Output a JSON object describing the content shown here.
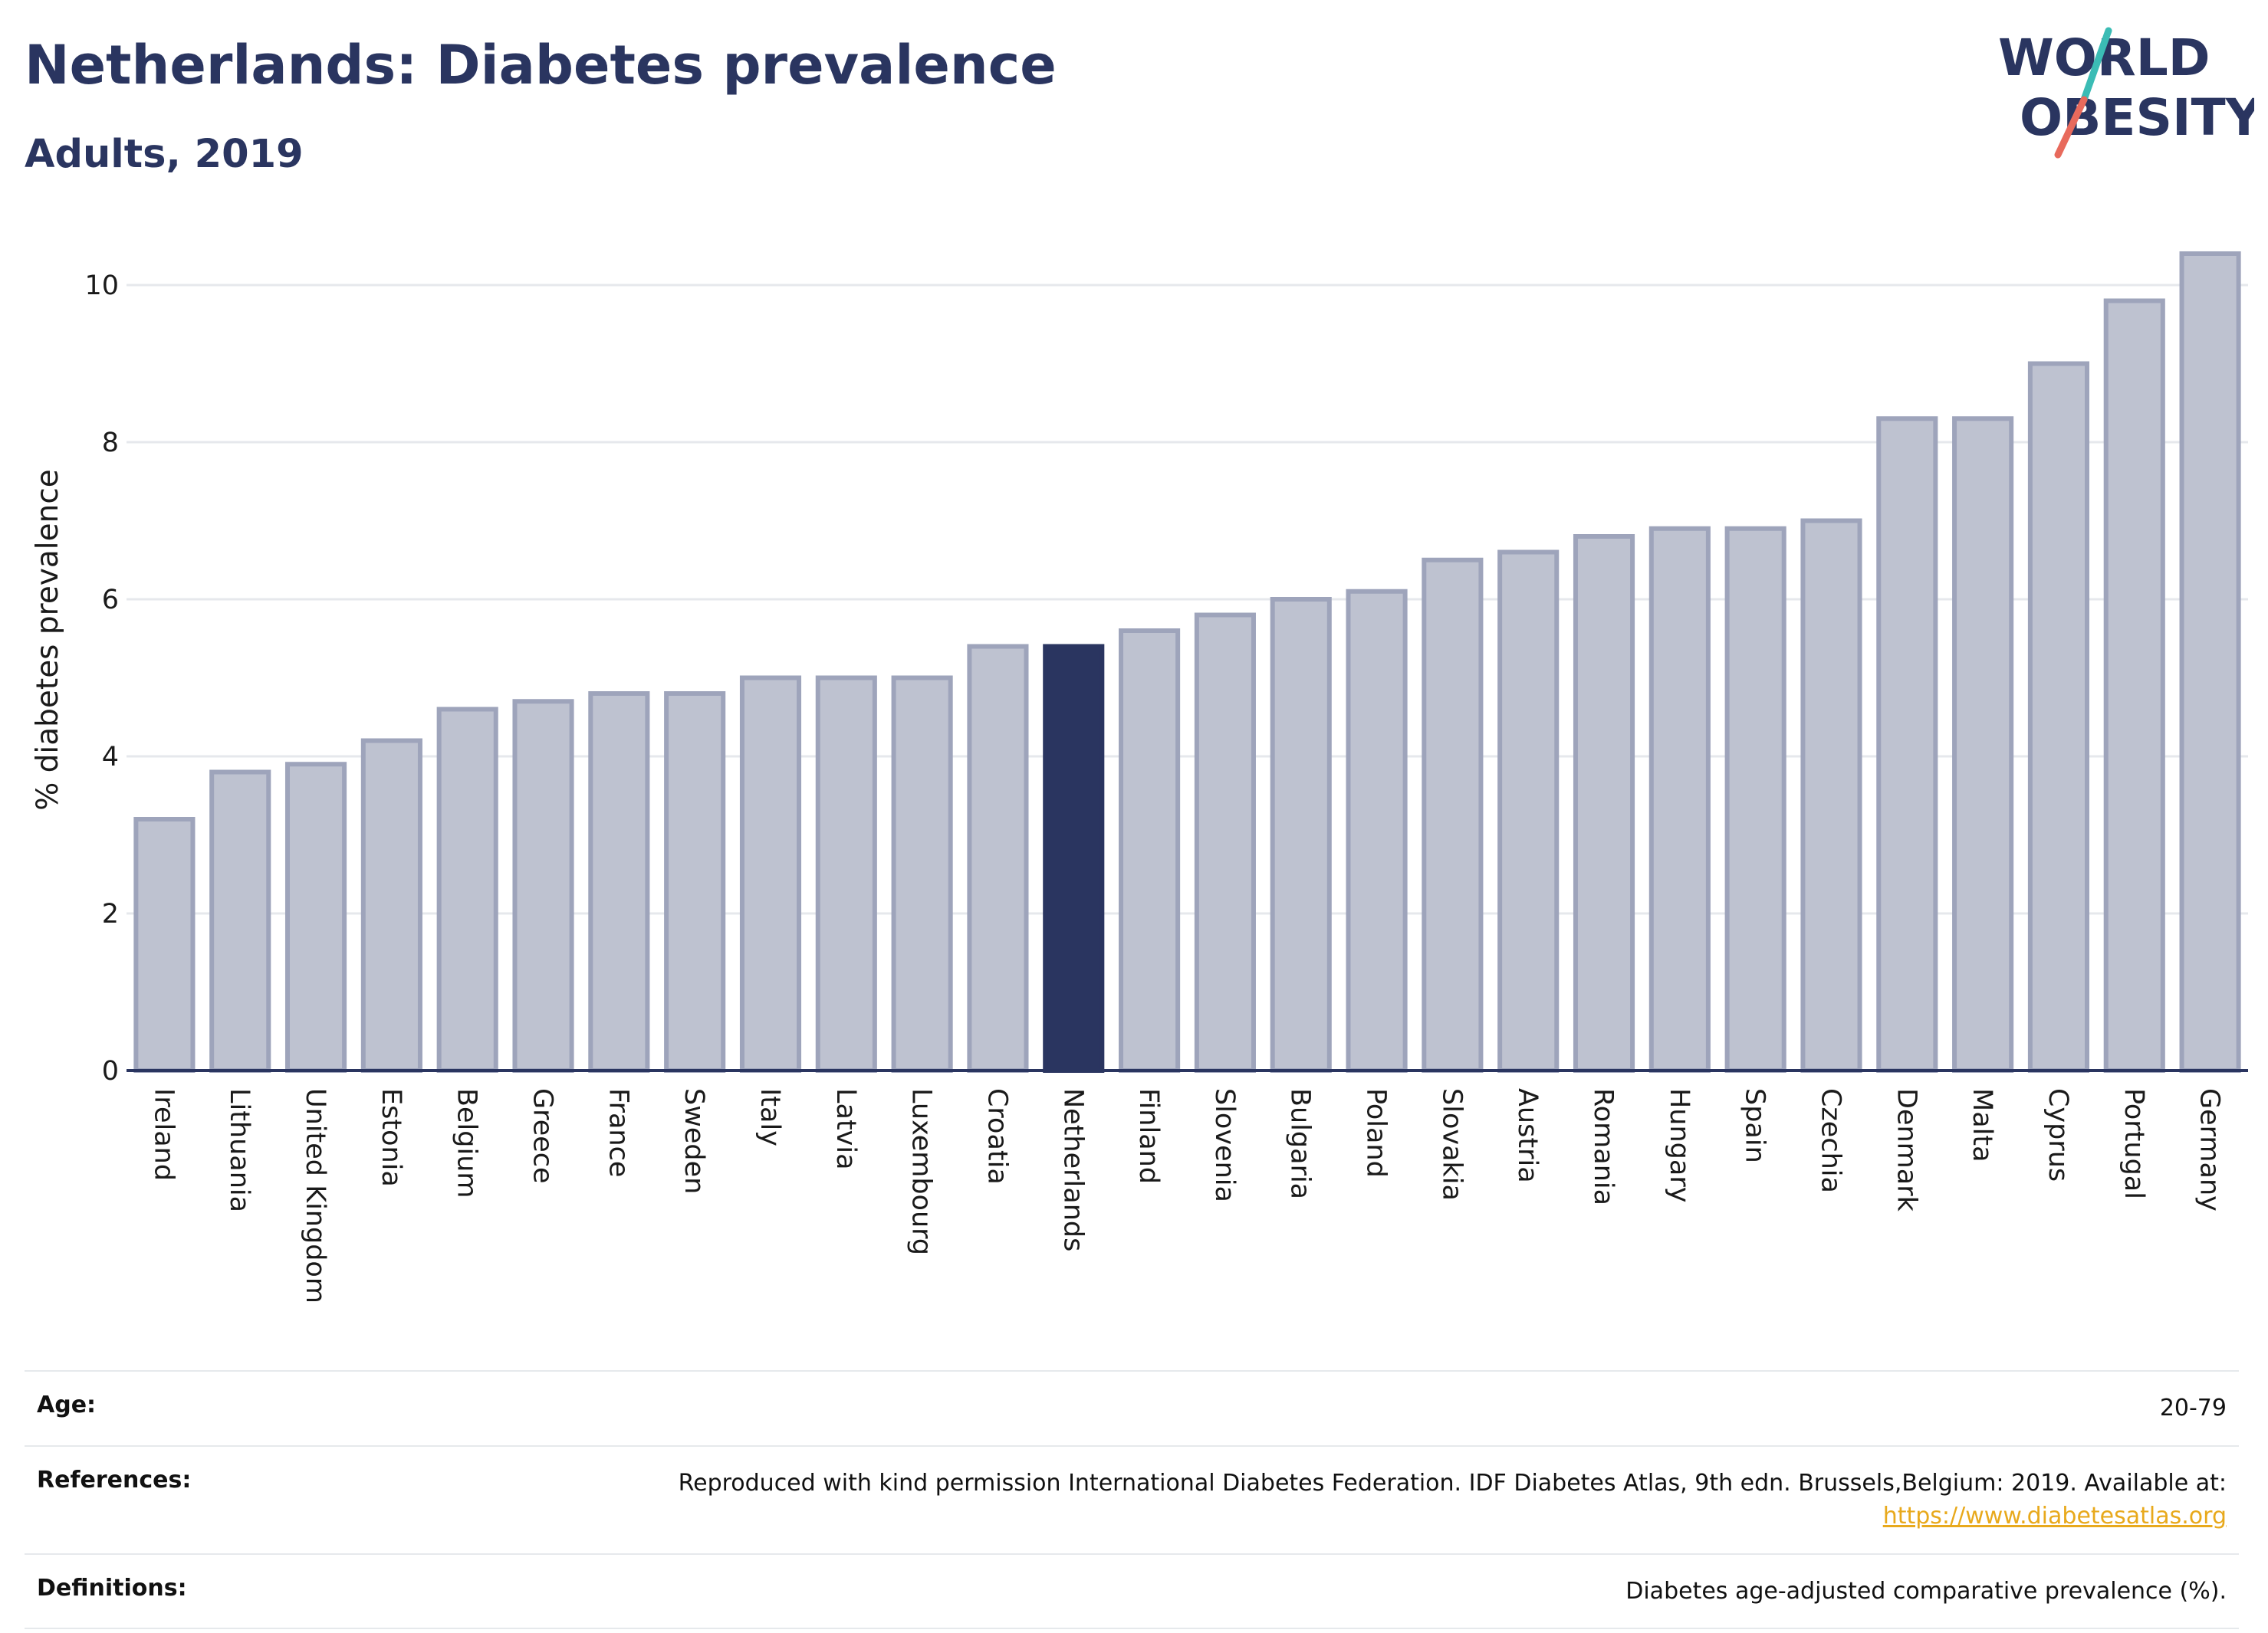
{
  "title": "Netherlands: Diabetes prevalence",
  "subtitle": "Adults, 2019",
  "logo": {
    "line1": "WORLD",
    "line2": "OBESITY",
    "colors": {
      "text": "#2a3560",
      "slash_teal": "#3bbcb5",
      "slash_coral": "#e86a5c"
    }
  },
  "colors": {
    "bar": "#bec2d0",
    "bar_stroke": "#9ea4bb",
    "highlight": "#2a3560",
    "grid": "#e6e8ec",
    "axis": "#2a3560"
  },
  "chart_data": {
    "type": "bar",
    "ylabel": "% diabetes prevalence",
    "ylim": [
      0,
      10.5
    ],
    "yticks": [
      0,
      2,
      4,
      6,
      8,
      10
    ],
    "grid": true,
    "highlight": "Netherlands",
    "categories": [
      "Ireland",
      "Lithuania",
      "United Kingdom",
      "Estonia",
      "Belgium",
      "Greece",
      "France",
      "Sweden",
      "Italy",
      "Latvia",
      "Luxembourg",
      "Croatia",
      "Netherlands",
      "Finland",
      "Slovenia",
      "Bulgaria",
      "Poland",
      "Slovakia",
      "Austria",
      "Romania",
      "Hungary",
      "Spain",
      "Czechia",
      "Denmark",
      "Malta",
      "Cyprus",
      "Portugal",
      "Germany"
    ],
    "values": [
      3.2,
      3.8,
      3.9,
      4.2,
      4.6,
      4.7,
      4.8,
      4.8,
      5.0,
      5.0,
      5.0,
      5.4,
      5.4,
      5.6,
      5.8,
      6.0,
      6.1,
      6.5,
      6.6,
      6.8,
      6.9,
      6.9,
      7.0,
      8.3,
      8.3,
      9.0,
      9.8,
      10.4
    ]
  },
  "info": {
    "age_label": "Age:",
    "age_value": "20-79",
    "references_label": "References:",
    "references_text": "Reproduced with kind permission International Diabetes Federation. IDF Diabetes Atlas, 9th edn. Brussels,Belgium: 2019. Available at:",
    "references_link": "https://www.diabetesatlas.org",
    "definitions_label": "Definitions:",
    "definitions_value": "Diabetes age-adjusted comparative prevalence (%)."
  }
}
